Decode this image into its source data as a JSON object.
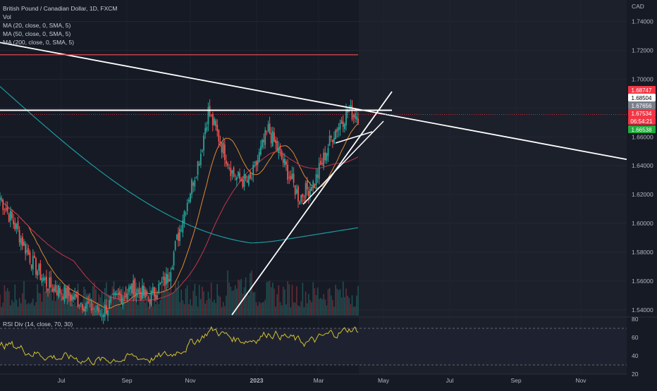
{
  "header": {
    "symbol_line": "British Pound / Canadian Dollar, 1D, FXCM",
    "indicators": [
      "Vol",
      "MA (20, close, 0, SMA, 5)",
      "MA (50, close, 0, SMA, 5)",
      "MA (200, close, 0, SMA, 5)"
    ],
    "rsi_label": "RSI Div (14, close, 70, 30)"
  },
  "colors": {
    "background": "#161a25",
    "future_area": "#1c202b",
    "up_candle": "#26a69a",
    "down_candle": "#ef5350",
    "ma20": "#e08a2e",
    "ma50": "#c2364a",
    "ma200": "#1e9aa0",
    "rsi_line": "#d4c22f",
    "trendlines": "#ffffff",
    "resistance_line": "#e0474c"
  },
  "chart_data": {
    "type": "candlestick",
    "title": "British Pound / Canadian Dollar, 1D, FXCM",
    "currency": "CAD",
    "y_ticks": [
      "1.74000",
      "1.72000",
      "1.70000",
      "1.68000",
      "1.66000",
      "1.64000",
      "1.62000",
      "1.60000",
      "1.58000",
      "1.56000",
      "1.54000"
    ],
    "y_range": [
      1.535,
      1.755
    ],
    "x_ticks": [
      "Jul",
      "Sep",
      "Nov",
      "2023",
      "Mar",
      "May",
      "Jul",
      "Sep",
      "Nov"
    ],
    "price_tags": [
      {
        "value": "1.68747",
        "color": "#f23645"
      },
      {
        "value": "1.68504",
        "color": "#ffffff"
      },
      {
        "value": "1.67656",
        "color": "#7a7f8a"
      },
      {
        "value": "1.67534",
        "color": "#f23645"
      },
      {
        "value": "06:54:21",
        "color": "#f23645"
      },
      {
        "value": "1.66538",
        "color": "#22ab3e"
      }
    ],
    "key_price_series": [
      {
        "date": "2022-06-01",
        "close": 1.618
      },
      {
        "date": "2022-06-15",
        "close": 1.598
      },
      {
        "date": "2022-07-01",
        "close": 1.572
      },
      {
        "date": "2022-07-15",
        "close": 1.557
      },
      {
        "date": "2022-08-01",
        "close": 1.551
      },
      {
        "date": "2022-08-15",
        "close": 1.545
      },
      {
        "date": "2022-09-01",
        "close": 1.538
      },
      {
        "date": "2022-09-15",
        "close": 1.548
      },
      {
        "date": "2022-10-01",
        "close": 1.555
      },
      {
        "date": "2022-10-15",
        "close": 1.548
      },
      {
        "date": "2022-11-01",
        "close": 1.562
      },
      {
        "date": "2022-11-15",
        "close": 1.605
      },
      {
        "date": "2022-12-01",
        "close": 1.648
      },
      {
        "date": "2022-12-08",
        "close": 1.678
      },
      {
        "date": "2022-12-15",
        "close": 1.665
      },
      {
        "date": "2023-01-01",
        "close": 1.632
      },
      {
        "date": "2023-01-15",
        "close": 1.628
      },
      {
        "date": "2023-02-01",
        "close": 1.665
      },
      {
        "date": "2023-02-15",
        "close": 1.642
      },
      {
        "date": "2023-03-01",
        "close": 1.618
      },
      {
        "date": "2023-03-15",
        "close": 1.628
      },
      {
        "date": "2023-04-01",
        "close": 1.662
      },
      {
        "date": "2023-04-15",
        "close": 1.678
      },
      {
        "date": "2023-04-24",
        "close": 1.675
      }
    ],
    "horizontal_levels": [
      1.717,
      1.6785
    ],
    "rsi": {
      "y_ticks": [
        "80",
        "60",
        "40",
        "20"
      ],
      "overbought": 70,
      "oversold": 30
    }
  }
}
